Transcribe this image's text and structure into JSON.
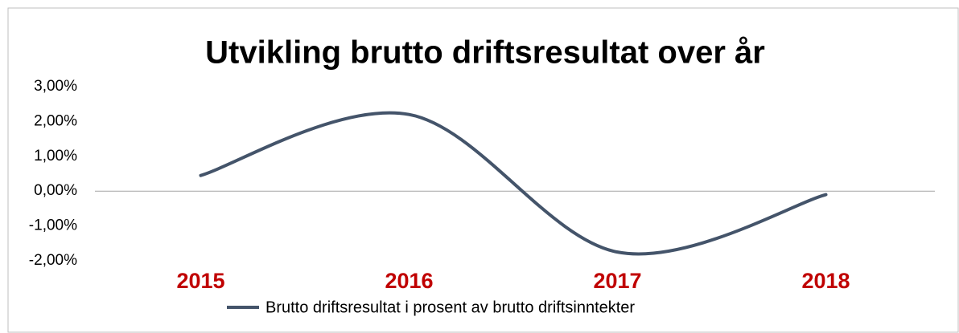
{
  "chart_data": {
    "type": "line",
    "title": "Utvikling brutto driftsresultat over år",
    "categories": [
      "2015",
      "2016",
      "2017",
      "2018"
    ],
    "series": [
      {
        "name": "Brutto driftsresultat i prosent av brutto driftsinntekter",
        "color": "#44546a",
        "values": [
          0.45,
          2.2,
          -1.75,
          -0.1
        ]
      }
    ],
    "ylim": [
      -2,
      3
    ],
    "yticks": [
      {
        "value": -2,
        "label": "-2,00%"
      },
      {
        "value": -1,
        "label": "-1,00%"
      },
      {
        "value": 0,
        "label": "0,00%"
      },
      {
        "value": 1,
        "label": "1,00%"
      },
      {
        "value": 2,
        "label": "2,00%"
      },
      {
        "value": 3,
        "label": "3,00%"
      }
    ],
    "category_color": "#c00000",
    "legend": "bottom"
  }
}
